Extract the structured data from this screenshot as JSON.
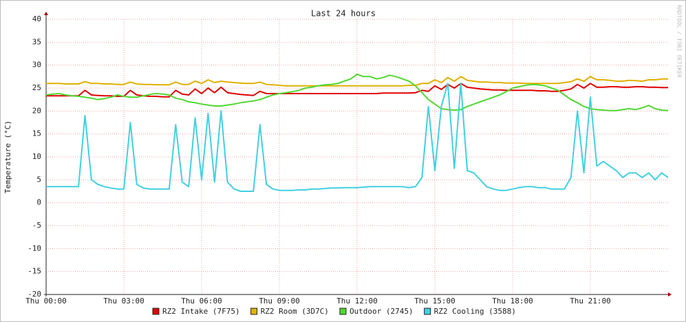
{
  "chart_data": {
    "type": "line",
    "title": "Last 24 hours",
    "y_label": "Temperature (°C)",
    "watermark": "RRDTOOL / TOBI OETIKER",
    "x": [
      0,
      0.25,
      0.5,
      0.75,
      1,
      1.25,
      1.5,
      1.75,
      2,
      2.25,
      2.5,
      2.75,
      3,
      3.25,
      3.5,
      3.75,
      4,
      4.25,
      4.5,
      4.75,
      5,
      5.25,
      5.5,
      5.75,
      6,
      6.25,
      6.5,
      6.75,
      7,
      7.25,
      7.5,
      7.75,
      8,
      8.25,
      8.5,
      8.75,
      9,
      9.25,
      9.5,
      9.75,
      10,
      10.25,
      10.5,
      10.75,
      11,
      11.25,
      11.5,
      11.75,
      12,
      12.25,
      12.5,
      12.75,
      13,
      13.25,
      13.5,
      13.75,
      14,
      14.25,
      14.5,
      14.75,
      15,
      15.25,
      15.5,
      15.75,
      16,
      16.25,
      16.5,
      16.75,
      17,
      17.25,
      17.5,
      17.75,
      18,
      18.25,
      18.5,
      18.75,
      19,
      19.25,
      19.5,
      19.75,
      20,
      20.25,
      20.5,
      20.75,
      21,
      21.25,
      21.5,
      21.75,
      22,
      22.25,
      22.5,
      22.75,
      23,
      23.25,
      23.5,
      23.75,
      24
    ],
    "xlim": [
      0,
      24
    ],
    "xticks": [
      {
        "value": 0,
        "label": "Thu 00:00"
      },
      {
        "value": 3,
        "label": "Thu 03:00"
      },
      {
        "value": 6,
        "label": "Thu 06:00"
      },
      {
        "value": 9,
        "label": "Thu 09:00"
      },
      {
        "value": 12,
        "label": "Thu 12:00"
      },
      {
        "value": 15,
        "label": "Thu 15:00"
      },
      {
        "value": 18,
        "label": "Thu 18:00"
      },
      {
        "value": 21,
        "label": "Thu 21:00"
      }
    ],
    "ylim": [
      -20,
      40
    ],
    "yticks": [
      -20,
      -15,
      -10,
      -5,
      0,
      5,
      10,
      15,
      20,
      25,
      30,
      35,
      40
    ],
    "grid": true,
    "legend": "bottom",
    "series": [
      {
        "name": "RZ2 Intake (7F75)",
        "color": "#e00000",
        "values": [
          23.3,
          23.3,
          23.3,
          23.3,
          23.3,
          23.3,
          24.5,
          23.5,
          23.4,
          23.3,
          23.3,
          23.2,
          23.2,
          24.5,
          23.5,
          23.3,
          23.2,
          23.2,
          23.1,
          23.1,
          24.5,
          23.7,
          23.5,
          24.8,
          23.8,
          25,
          24,
          25.2,
          24,
          23.8,
          23.6,
          23.5,
          23.4,
          24.3,
          23.8,
          23.8,
          23.8,
          23.8,
          23.8,
          23.8,
          23.8,
          23.8,
          23.8,
          23.8,
          23.8,
          23.8,
          23.8,
          23.8,
          23.8,
          23.8,
          23.8,
          23.8,
          23.9,
          23.9,
          23.9,
          23.9,
          23.9,
          24,
          24.5,
          24.3,
          25.5,
          24.7,
          25.8,
          25,
          26,
          25.2,
          25,
          24.8,
          24.7,
          24.6,
          24.6,
          24.5,
          24.5,
          24.5,
          24.5,
          24.5,
          24.4,
          24.4,
          24.3,
          24.3,
          24.5,
          24.8,
          25.8,
          25,
          26,
          25.2,
          25.2,
          25.3,
          25.3,
          25.2,
          25.2,
          25.3,
          25.3,
          25.2,
          25.2,
          25.1,
          25.1
        ]
      },
      {
        "name": "RZ2 Room (3D7C)",
        "color": "#e0b000",
        "values": [
          26,
          26,
          26,
          25.9,
          25.9,
          25.9,
          26.4,
          26,
          26,
          25.9,
          25.9,
          25.8,
          25.8,
          26.3,
          25.9,
          25.8,
          25.8,
          25.7,
          25.7,
          25.7,
          26.3,
          25.8,
          25.8,
          26.5,
          26,
          26.8,
          26.2,
          26.5,
          26.3,
          26.2,
          26.1,
          26,
          26,
          26.3,
          25.8,
          25.7,
          25.6,
          25.5,
          25.5,
          25.5,
          25.5,
          25.5,
          25.5,
          25.5,
          25.5,
          25.5,
          25.5,
          25.5,
          25.5,
          25.5,
          25.5,
          25.5,
          25.5,
          25.5,
          25.5,
          25.5,
          25.6,
          25.6,
          26,
          26,
          26.8,
          26.2,
          27.3,
          26.5,
          27.5,
          26.7,
          26.5,
          26.3,
          26.3,
          26.2,
          26.2,
          26.1,
          26.1,
          26.1,
          26,
          26,
          26,
          26,
          26,
          26,
          26.2,
          26.4,
          27,
          26.5,
          27.5,
          26.8,
          26.8,
          26.7,
          26.5,
          26.5,
          26.7,
          26.6,
          26.5,
          26.8,
          26.8,
          27,
          27
        ]
      },
      {
        "name": "Outdoor (2745)",
        "color": "#50d830",
        "values": [
          23.5,
          23.7,
          23.8,
          23.5,
          23.3,
          23.2,
          23,
          22.8,
          22.5,
          22.7,
          23,
          23.5,
          23.2,
          23,
          23,
          23.3,
          23.6,
          23.8,
          23.7,
          23.5,
          22.8,
          22.5,
          22,
          21.8,
          21.5,
          21.3,
          21.1,
          21.1,
          21.3,
          21.5,
          21.8,
          22,
          22.2,
          22.5,
          23,
          23.5,
          23.8,
          24,
          24.2,
          24.5,
          25,
          25.2,
          25.5,
          25.7,
          25.8,
          26,
          26.5,
          27,
          28,
          27.5,
          27.5,
          27,
          27.3,
          27.8,
          27.5,
          27,
          26.5,
          25.5,
          24,
          22.5,
          21.5,
          20.5,
          20.3,
          20.2,
          20.3,
          21,
          21.5,
          22,
          22.5,
          23,
          23.5,
          24.2,
          25,
          25.3,
          25.6,
          25.8,
          25.7,
          25.5,
          25,
          24.5,
          23.5,
          22.5,
          21.8,
          21,
          20.5,
          20.3,
          20.2,
          20.1,
          20.1,
          20.3,
          20.5,
          20.3,
          20.7,
          21.2,
          20.5,
          20.2,
          20.1
        ]
      },
      {
        "name": "RZ2 Cooling (3588)",
        "color": "#40d0e0",
        "values": [
          3.5,
          3.5,
          3.5,
          3.5,
          3.5,
          3.5,
          19,
          5,
          4,
          3.5,
          3.2,
          3,
          3,
          17.5,
          4,
          3.2,
          3,
          3,
          3,
          3,
          17,
          4.5,
          3.5,
          18.5,
          5,
          19.5,
          4.5,
          20,
          4.5,
          3,
          2.5,
          2.5,
          2.5,
          17,
          4,
          3,
          2.7,
          2.7,
          2.7,
          2.8,
          2.8,
          3,
          3,
          3.1,
          3.2,
          3.2,
          3.3,
          3.3,
          3.3,
          3.4,
          3.5,
          3.5,
          3.5,
          3.5,
          3.5,
          3.5,
          3.3,
          3.5,
          5.5,
          21,
          7,
          21,
          26,
          7.5,
          26,
          7,
          6.5,
          5,
          3.5,
          3,
          2.7,
          2.7,
          3,
          3.3,
          3.5,
          3.5,
          3.3,
          3.3,
          3,
          3,
          3,
          5.5,
          20,
          6.5,
          23,
          8,
          9,
          8,
          7,
          5.5,
          6.5,
          6.5,
          5.5,
          6.5,
          5,
          6.5,
          5.5
        ]
      }
    ]
  }
}
